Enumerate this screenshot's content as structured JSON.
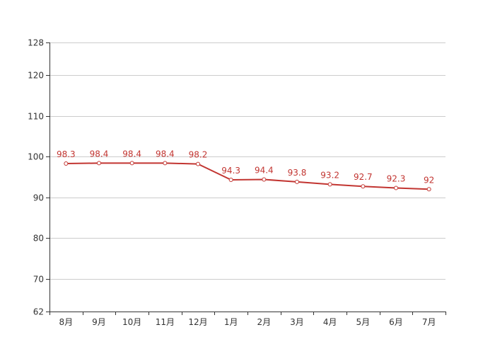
{
  "chart_data": {
    "type": "line",
    "title": "",
    "xlabel": "",
    "ylabel": "",
    "categories": [
      "8月",
      "9月",
      "10月",
      "11月",
      "12月",
      "1月",
      "2月",
      "3月",
      "4月",
      "5月",
      "6月",
      "7月"
    ],
    "series": [
      {
        "values": [
          98.3,
          98.4,
          98.4,
          98.4,
          98.2,
          94.3,
          94.4,
          93.8,
          93.2,
          92.7,
          92.3,
          92
        ],
        "labels": [
          "98.3",
          "98.4",
          "98.4",
          "98.4",
          "98.2",
          "94.3",
          "94.4",
          "93.8",
          "93.2",
          "92.7",
          "92.3",
          "92"
        ],
        "color": "#c23531"
      }
    ],
    "ylim": [
      62,
      128
    ],
    "yticks": [
      62,
      70,
      80,
      90,
      100,
      110,
      120,
      128
    ],
    "ytick_labels": [
      "62",
      "70",
      "80",
      "90",
      "100",
      "110",
      "120",
      "128"
    ],
    "grid": true,
    "legend": "none"
  }
}
